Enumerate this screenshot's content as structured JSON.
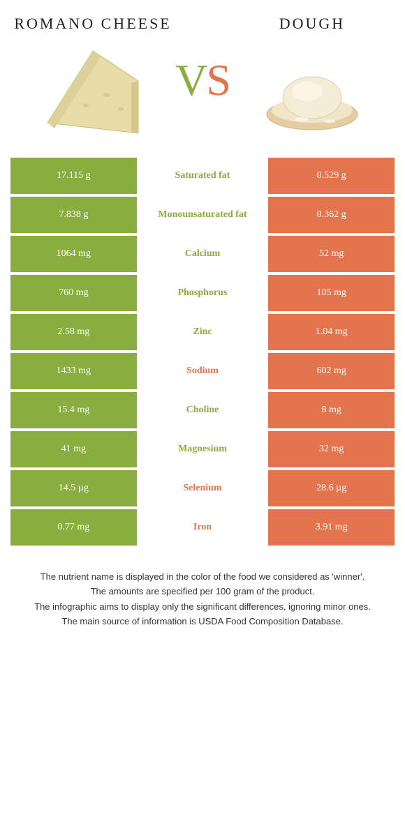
{
  "foodA": {
    "title": "Romano cheese",
    "color": "#8aad3f"
  },
  "foodB": {
    "title": "Dough",
    "color": "#e2754e"
  },
  "vs": {
    "v": "V",
    "s": "S"
  },
  "rows": [
    {
      "left": "17.115 g",
      "label": "Saturated fat",
      "winner": "green",
      "right": "0.529 g"
    },
    {
      "left": "7.838 g",
      "label": "Monounsaturated fat",
      "winner": "green",
      "right": "0.362 g"
    },
    {
      "left": "1064 mg",
      "label": "Calcium",
      "winner": "green",
      "right": "52 mg"
    },
    {
      "left": "760 mg",
      "label": "Phosphorus",
      "winner": "green",
      "right": "105 mg"
    },
    {
      "left": "2.58 mg",
      "label": "Zinc",
      "winner": "green",
      "right": "1.04 mg"
    },
    {
      "left": "1433 mg",
      "label": "Sodium",
      "winner": "orange",
      "right": "602 mg"
    },
    {
      "left": "15.4 mg",
      "label": "Choline",
      "winner": "green",
      "right": "8 mg"
    },
    {
      "left": "41 mg",
      "label": "Magnesium",
      "winner": "green",
      "right": "32 mg"
    },
    {
      "left": "14.5 µg",
      "label": "Selenium",
      "winner": "orange",
      "right": "28.6 µg"
    },
    {
      "left": "0.77 mg",
      "label": "Iron",
      "winner": "orange",
      "right": "3.91 mg"
    }
  ],
  "footer": [
    "The nutrient name is displayed in the color of the food we considered as 'winner'.",
    "The amounts are specified per 100 gram of the product.",
    "The infographic aims to display only the significant differences, ignoring minor ones.",
    "The main source of information is USDA Food Composition Database."
  ]
}
